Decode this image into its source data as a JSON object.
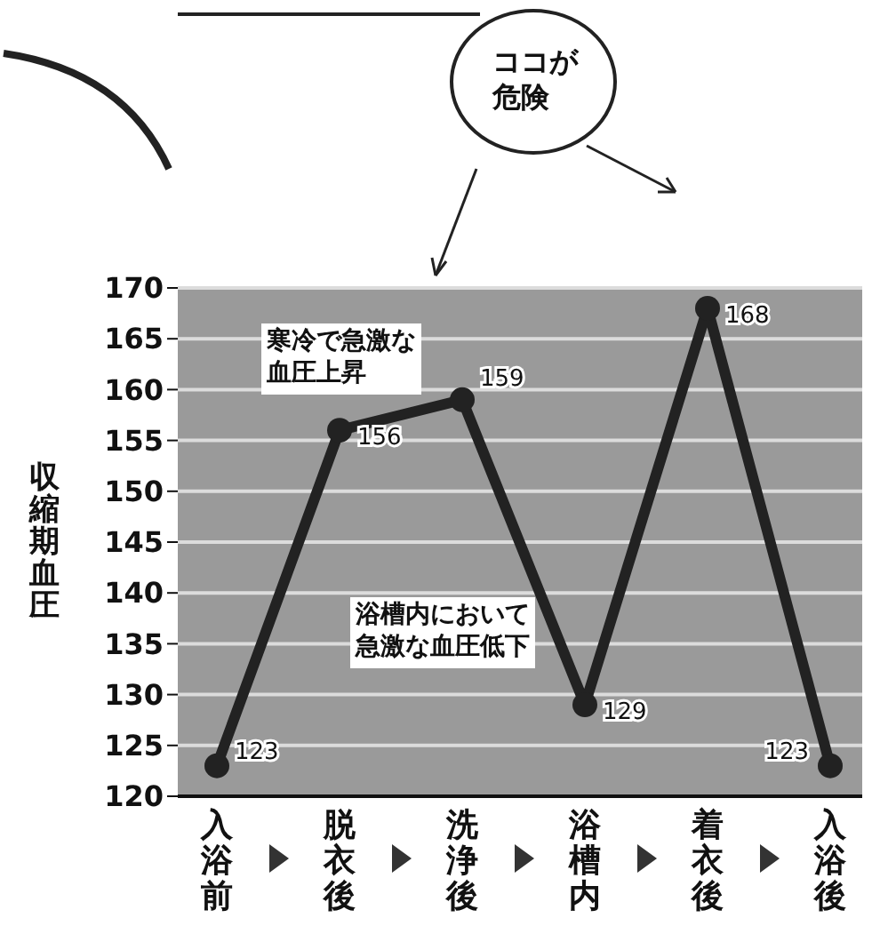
{
  "chart_data": {
    "type": "line",
    "ylabel": "収縮期血圧",
    "categories": [
      "入浴前",
      "脱衣後",
      "洗浄後",
      "浴槽内",
      "着衣後",
      "入浴後"
    ],
    "series": [
      {
        "color": "#222222",
        "values": [
          123,
          156,
          159,
          129,
          168,
          123
        ]
      }
    ],
    "ylim": [
      120,
      170
    ],
    "yticks": [
      120,
      125,
      130,
      135,
      140,
      145,
      150,
      155,
      160,
      165,
      170
    ],
    "grid": "y",
    "marker": "circle",
    "data_labels": true,
    "annotations": [
      "寒冷で急激な血圧上昇",
      "浴槽内において急激な血圧低下",
      "ココが危険"
    ]
  }
}
